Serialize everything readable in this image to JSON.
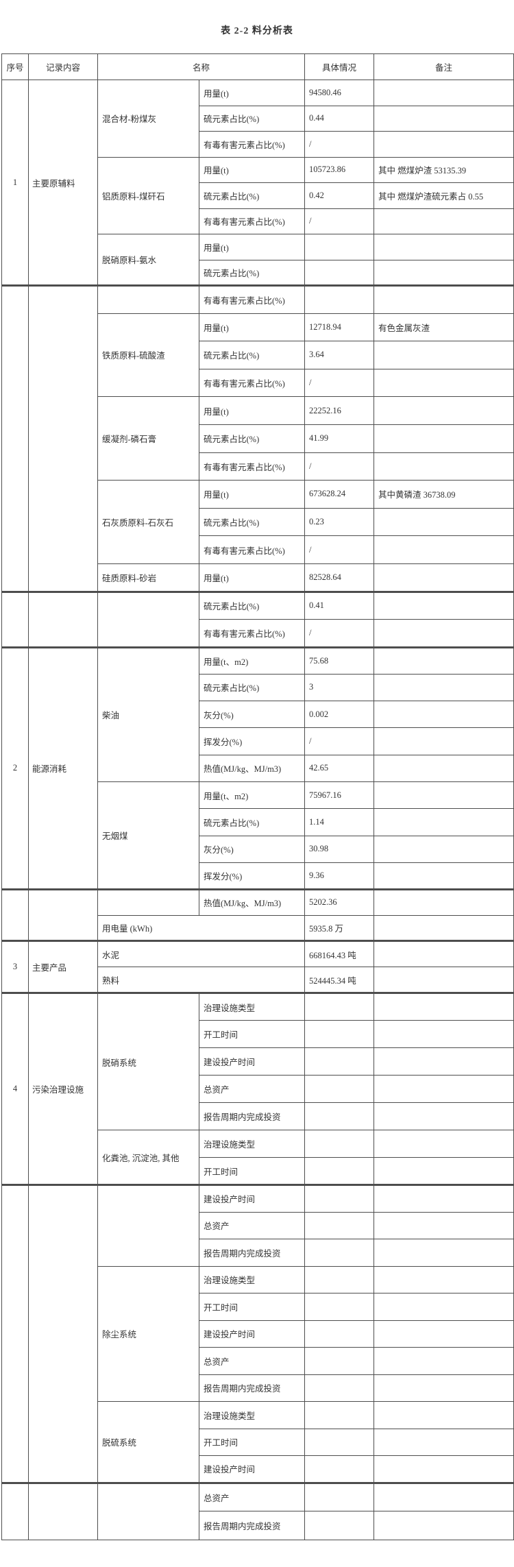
{
  "title": "表 2-2 料分析表",
  "table": {
    "headers": [
      "序号",
      "记录内容",
      "名称",
      "具体情况",
      "备注"
    ],
    "blocks": [
      {
        "no": "1",
        "category": "主要原辅料",
        "groups": [
          {
            "name": "混合材-粉煤灰",
            "rows": [
              {
                "label": "用量(t)",
                "value": "94580.46",
                "remark": ""
              },
              {
                "label": "硫元素占比(%)",
                "value": "0.44",
                "remark": ""
              },
              {
                "label": "有毒有害元素占比(%)",
                "value": "/",
                "remark": ""
              }
            ]
          },
          {
            "name": "铝质原料-煤矸石",
            "rows": [
              {
                "label": "用量(t)",
                "value": "105723.86",
                "remark": "其中 燃煤炉渣 53135.39"
              },
              {
                "label": "硫元素占比(%)",
                "value": "0.42",
                "remark": "其中 燃煤炉渣硫元素占 0.55"
              },
              {
                "label": "有毒有害元素占比(%)",
                "value": "/",
                "remark": ""
              }
            ]
          },
          {
            "name": "脱硝原料-氨水",
            "rows": [
              {
                "label": "用量(t)",
                "value": "",
                "remark": ""
              },
              {
                "label": "硫元素占比(%)",
                "value": "",
                "remark": ""
              }
            ]
          }
        ]
      },
      {
        "no": "",
        "category": "",
        "groups": [
          {
            "name": "",
            "rows": [
              {
                "label": "有毒有害元素占比(%)",
                "value": "",
                "remark": ""
              }
            ]
          },
          {
            "name": "铁质原料-硫酸渣",
            "rows": [
              {
                "label": "用量(t)",
                "value": "12718.94",
                "remark": "有色金属灰渣"
              },
              {
                "label": "硫元素占比(%)",
                "value": "3.64",
                "remark": ""
              },
              {
                "label": "有毒有害元素占比(%)",
                "value": "/",
                "remark": ""
              }
            ]
          },
          {
            "name": "缓凝剂-磷石膏",
            "rows": [
              {
                "label": "用量(t)",
                "value": "22252.16",
                "remark": ""
              },
              {
                "label": "硫元素占比(%)",
                "value": "41.99",
                "remark": ""
              },
              {
                "label": "有毒有害元素占比(%)",
                "value": "/",
                "remark": ""
              }
            ]
          },
          {
            "name": "石灰质原料-石灰石",
            "rows": [
              {
                "label": "用量(t)",
                "value": "673628.24",
                "remark": "其中黄磷渣 36738.09"
              },
              {
                "label": "硫元素占比(%)",
                "value": "0.23",
                "remark": ""
              },
              {
                "label": "有毒有害元素占比(%)",
                "value": "/",
                "remark": ""
              }
            ]
          },
          {
            "name": "硅质原料-砂岩",
            "rows": [
              {
                "label": "用量(t)",
                "value": "82528.64",
                "remark": ""
              }
            ]
          }
        ]
      },
      {
        "no": "",
        "category": "",
        "groups": [
          {
            "name": "",
            "rows": [
              {
                "label": "硫元素占比(%)",
                "value": "0.41",
                "remark": ""
              },
              {
                "label": "有毒有害元素占比(%)",
                "value": "/",
                "remark": ""
              }
            ]
          }
        ]
      },
      {
        "no": "2",
        "category": "能源消耗",
        "groups": [
          {
            "name": "柴油",
            "rows": [
              {
                "label": "用量(t、m2)",
                "value": "75.68",
                "remark": ""
              },
              {
                "label": "硫元素占比(%)",
                "value": "3",
                "remark": ""
              },
              {
                "label": "灰分(%)",
                "value": "0.002",
                "remark": ""
              },
              {
                "label": "挥发分(%)",
                "value": "/",
                "remark": ""
              },
              {
                "label": "热值(MJ/kg、MJ/m3)",
                "value": "42.65",
                "remark": ""
              }
            ]
          },
          {
            "name": "无烟煤",
            "rows": [
              {
                "label": "用量(t、m2)",
                "value": "75967.16",
                "remark": ""
              },
              {
                "label": "硫元素占比(%)",
                "value": "1.14",
                "remark": ""
              },
              {
                "label": "灰分(%)",
                "value": "30.98",
                "remark": ""
              },
              {
                "label": "挥发分(%)",
                "value": "9.36",
                "remark": ""
              }
            ]
          }
        ]
      },
      {
        "no": "",
        "category": "",
        "groups": [
          {
            "name": "",
            "rows": [
              {
                "label": "热值(MJ/kg、MJ/m3)",
                "value": "5202.36",
                "remark": ""
              }
            ]
          },
          {
            "wide": true,
            "rows": [
              {
                "label": "用电量 (kWh)",
                "value": "5935.8 万",
                "remark": ""
              }
            ]
          }
        ]
      },
      {
        "no": "3",
        "category": "主要产品",
        "groups": [
          {
            "wide": true,
            "rows": [
              {
                "label": "水泥",
                "value": "668164.43 吨",
                "remark": ""
              },
              {
                "label": "熟料",
                "value": "524445.34 吨",
                "remark": ""
              }
            ]
          }
        ]
      },
      {
        "no": "4",
        "category": "污染治理设施",
        "groups": [
          {
            "name": "脱硝系统",
            "rows": [
              {
                "label": "治理设施类型",
                "value": "",
                "remark": ""
              },
              {
                "label": "开工时间",
                "value": "",
                "remark": ""
              },
              {
                "label": "建设投产时间",
                "value": "",
                "remark": ""
              },
              {
                "label": "总资产",
                "value": "",
                "remark": ""
              },
              {
                "label": "报告周期内完成投资",
                "value": "",
                "remark": ""
              }
            ]
          },
          {
            "name": "化粪池, 沉淀池, 其他",
            "rows": [
              {
                "label": "治理设施类型",
                "value": "",
                "remark": ""
              },
              {
                "label": "开工时间",
                "value": "",
                "remark": ""
              }
            ]
          }
        ]
      },
      {
        "no": "",
        "category": "",
        "groups": [
          {
            "name": "",
            "rows": [
              {
                "label": "建设投产时间",
                "value": "",
                "remark": ""
              },
              {
                "label": "总资产",
                "value": "",
                "remark": ""
              },
              {
                "label": "报告周期内完成投资",
                "value": "",
                "remark": ""
              }
            ]
          },
          {
            "name": "除尘系统",
            "rows": [
              {
                "label": "治理设施类型",
                "value": "",
                "remark": ""
              },
              {
                "label": "开工时间",
                "value": "",
                "remark": ""
              },
              {
                "label": "建设投产时间",
                "value": "",
                "remark": ""
              },
              {
                "label": "总资产",
                "value": "",
                "remark": ""
              },
              {
                "label": "报告周期内完成投资",
                "value": "",
                "remark": ""
              }
            ]
          },
          {
            "name": "脱硫系统",
            "rows": [
              {
                "label": "治理设施类型",
                "value": "",
                "remark": ""
              },
              {
                "label": "开工时间",
                "value": "",
                "remark": ""
              },
              {
                "label": "建设投产时间",
                "value": "",
                "remark": ""
              }
            ]
          }
        ]
      },
      {
        "no": "",
        "category": "",
        "groups": [
          {
            "name": "",
            "rows": [
              {
                "label": "总资产",
                "value": "",
                "remark": ""
              },
              {
                "label": "报告周期内完成投资",
                "value": "",
                "remark": ""
              }
            ]
          }
        ]
      }
    ]
  }
}
